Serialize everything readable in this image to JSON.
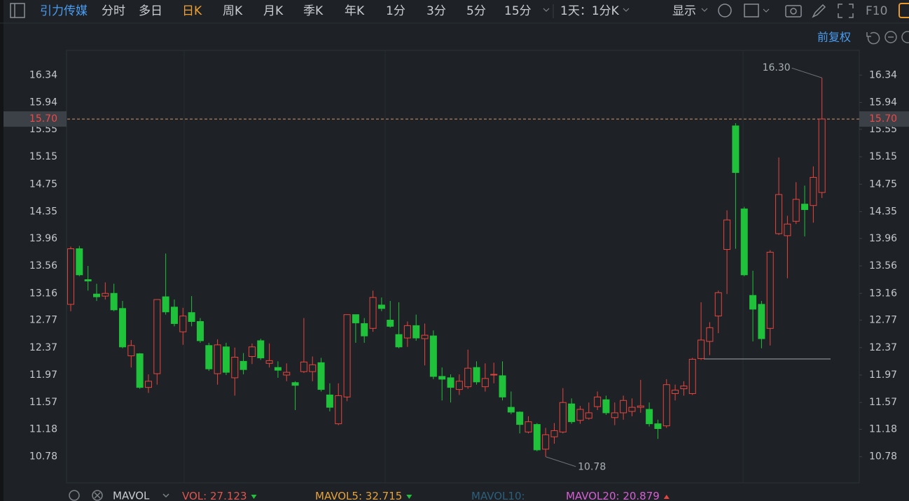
{
  "toolbar": {
    "stock": "引力传媒",
    "periods": [
      "分时",
      "多日",
      "日K",
      "周K",
      "月K",
      "季K",
      "年K",
      "1分",
      "3分",
      "5分",
      "15分"
    ],
    "interval": "1天：1分K",
    "display": "显示",
    "f10": "F10"
  },
  "adjust": "前复权",
  "chart_data": {
    "type": "candlestick",
    "open": [
      13.0,
      13.81,
      13.36,
      13.15,
      13.12,
      13.16,
      12.94,
      12.25,
      12.28,
      11.79,
      11.99,
      13.11,
      12.96,
      12.6,
      12.88,
      12.75,
      12.4,
      11.99,
      12.38,
      11.93,
      12.17,
      12.24,
      12.47,
      12.14,
      12.08,
      11.97,
      11.86,
      12.02,
      12.02,
      12.15,
      11.68,
      11.26,
      11.65,
      12.85,
      12.72,
      12.65,
      12.99,
      12.77,
      12.56,
      12.51,
      12.69,
      12.5,
      12.54,
      11.95,
      11.93,
      11.76,
      11.8,
      12.08,
      11.8,
      11.97,
      11.96,
      11.5,
      11.43,
      11.14,
      11.25,
      10.89,
      11.07,
      11.14,
      11.55,
      11.31,
      11.34,
      11.51,
      11.61,
      11.35,
      11.42,
      11.44,
      11.5,
      11.47,
      11.26,
      11.23,
      11.7,
      11.77,
      11.7,
      12.21,
      12.46,
      12.83,
      13.8,
      15.6,
      14.39,
      13.13,
      13.0,
      12.65,
      14.03,
      14.0,
      14.21,
      14.46,
      14.44,
      14.63
    ],
    "high": [
      13.84,
      13.85,
      13.56,
      13.3,
      13.32,
      13.3,
      13.05,
      12.48,
      12.29,
      11.98,
      13.07,
      13.74,
      13.07,
      12.95,
      13.12,
      12.8,
      12.44,
      12.49,
      12.44,
      12.37,
      12.29,
      12.43,
      12.5,
      12.43,
      12.17,
      12.14,
      11.88,
      12.8,
      12.24,
      12.22,
      11.85,
      11.85,
      12.85,
      12.85,
      12.8,
      13.2,
      13.1,
      13.05,
      13.03,
      12.75,
      12.85,
      12.72,
      12.62,
      12.08,
      11.98,
      11.98,
      12.34,
      12.17,
      12.14,
      12.15,
      12.17,
      11.73,
      11.44,
      11.37,
      11.27,
      11.2,
      11.27,
      11.78,
      11.63,
      11.52,
      11.57,
      11.73,
      11.67,
      11.57,
      11.67,
      11.63,
      11.9,
      11.57,
      11.32,
      11.91,
      11.83,
      11.88,
      12.22,
      13.03,
      12.74,
      13.2,
      14.37,
      15.64,
      14.42,
      13.49,
      13.05,
      13.79,
      15.14,
      14.29,
      14.78,
      14.73,
      15.01,
      16.3
    ],
    "low": [
      12.9,
      13.41,
      13.2,
      13.05,
      13.07,
      12.9,
      12.36,
      12.08,
      11.77,
      11.71,
      11.83,
      12.85,
      12.68,
      12.41,
      12.68,
      12.44,
      12.03,
      11.83,
      11.97,
      11.67,
      11.98,
      12.13,
      12.19,
      12.08,
      11.93,
      11.88,
      11.46,
      12.0,
      11.88,
      11.73,
      11.44,
      11.24,
      11.59,
      12.44,
      12.44,
      12.6,
      12.9,
      12.66,
      12.36,
      12.38,
      12.47,
      12.11,
      11.91,
      11.6,
      11.57,
      11.68,
      11.77,
      11.83,
      11.73,
      11.85,
      11.6,
      11.4,
      11.12,
      11.12,
      10.86,
      10.78,
      10.97,
      11.12,
      11.26,
      11.26,
      11.32,
      11.46,
      11.39,
      11.24,
      11.32,
      11.37,
      11.42,
      11.22,
      11.04,
      11.2,
      11.6,
      11.67,
      11.68,
      12.19,
      12.26,
      12.58,
      13.15,
      13.81,
      13.41,
      12.46,
      12.36,
      12.4,
      14.01,
      13.38,
      14.17,
      13.99,
      14.19,
      14.55
    ],
    "close": [
      13.81,
      13.43,
      13.34,
      13.11,
      13.16,
      12.92,
      12.38,
      12.4,
      11.79,
      11.88,
      13.07,
      12.89,
      12.72,
      12.83,
      12.75,
      12.47,
      12.06,
      12.41,
      12.01,
      12.23,
      12.05,
      12.38,
      12.22,
      12.18,
      12.04,
      12.01,
      11.82,
      12.16,
      12.12,
      11.76,
      11.5,
      11.67,
      12.85,
      12.73,
      12.54,
      13.1,
      12.94,
      12.68,
      12.38,
      12.69,
      12.51,
      12.55,
      11.95,
      11.91,
      11.79,
      11.88,
      12.07,
      11.87,
      11.92,
      11.98,
      11.65,
      11.43,
      11.25,
      11.29,
      10.88,
      11.1,
      11.16,
      11.57,
      11.29,
      11.47,
      11.42,
      11.65,
      11.42,
      11.42,
      11.6,
      11.5,
      11.52,
      11.26,
      11.19,
      11.83,
      11.75,
      11.81,
      12.2,
      12.48,
      12.66,
      13.17,
      14.23,
      14.92,
      13.43,
      12.93,
      12.5,
      13.76,
      14.6,
      14.17,
      14.53,
      14.38,
      14.85,
      15.7
    ],
    "up_color": "#e8443e",
    "down_color": "#1fc23a",
    "ylim": [
      10.4,
      16.7
    ],
    "yticks": [
      16.34,
      15.94,
      15.55,
      15.15,
      14.75,
      14.35,
      13.96,
      13.56,
      13.16,
      12.77,
      12.37,
      11.97,
      11.57,
      11.18,
      10.78
    ],
    "current_price": {
      "value": 15.7,
      "label": "15.70"
    },
    "annotations": [
      {
        "value": 16.3,
        "label": "16.30"
      },
      {
        "value": 10.78
      }
    ]
  },
  "volume_legend": {
    "indicator": "MAVOL",
    "items": [
      {
        "name": "VOL:",
        "value": 27.123,
        "color": "#e0554f"
      },
      {
        "name": "MAVOL5:",
        "value": 32.715,
        "color": "#e8a23a"
      },
      {
        "name": "MAVOL10:",
        "color": "#2b5f7c"
      },
      {
        "name": "MAVOL20:",
        "value": 20.879,
        "color": "#d65fd6"
      }
    ]
  }
}
